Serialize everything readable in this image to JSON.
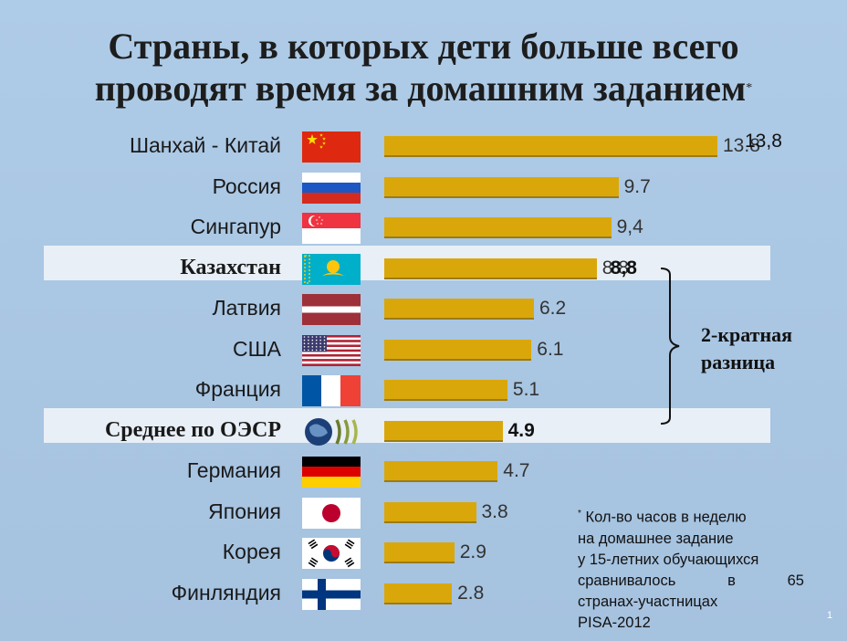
{
  "title_line1": "Страны, в которых дети больше всего",
  "title_line2": "проводят время за домашним заданием",
  "title_star": "*",
  "chart_data": {
    "type": "bar",
    "orientation": "horizontal",
    "categories": [
      "Шанхай - Китай",
      "Россия",
      "Сингапур",
      "Казахстан",
      "Латвия",
      "США",
      "Франция",
      "Среднее по ОЭСР",
      "Германия",
      "Япония",
      "Корея",
      "Финляндия"
    ],
    "values": [
      13.8,
      9.7,
      9.4,
      8.8,
      6.2,
      6.1,
      5.1,
      4.9,
      4.7,
      3.8,
      2.9,
      2.8
    ],
    "value_labels": [
      "13.8",
      "9.7",
      "9,4",
      "8.8",
      "6.2",
      "6.1",
      "5.1",
      "4.9",
      "4.7",
      "3.8",
      "2.9",
      "2.8"
    ],
    "overlay_labels": [
      "13,8",
      "",
      "",
      "8,8",
      "",
      "",
      "",
      "",
      "",
      "",
      "",
      ""
    ],
    "flags": [
      "china-flag",
      "russia-flag",
      "singapore-flag",
      "kazakhstan-flag",
      "latvia-flag",
      "usa-flag",
      "france-flag",
      "oecd-logo",
      "germany-flag",
      "japan-flag",
      "korea-flag",
      "finland-flag"
    ],
    "highlighted": [
      "Казахстан",
      "Среднее по ОЭСР"
    ],
    "bar_color": "#daa70a"
  },
  "brace_label_line1": "2-кратная",
  "brace_label_line2": "разница",
  "footnote": {
    "star": "*",
    "line1": "Кол-во часов в неделю",
    "line2": "на домашнее задание",
    "line3": "у 15-летних обучающихся",
    "line4_words": [
      "сравнивалось",
      "в",
      "65"
    ],
    "line5": "странах-участницах",
    "line6": "PISA-2012"
  },
  "page_number": "1"
}
